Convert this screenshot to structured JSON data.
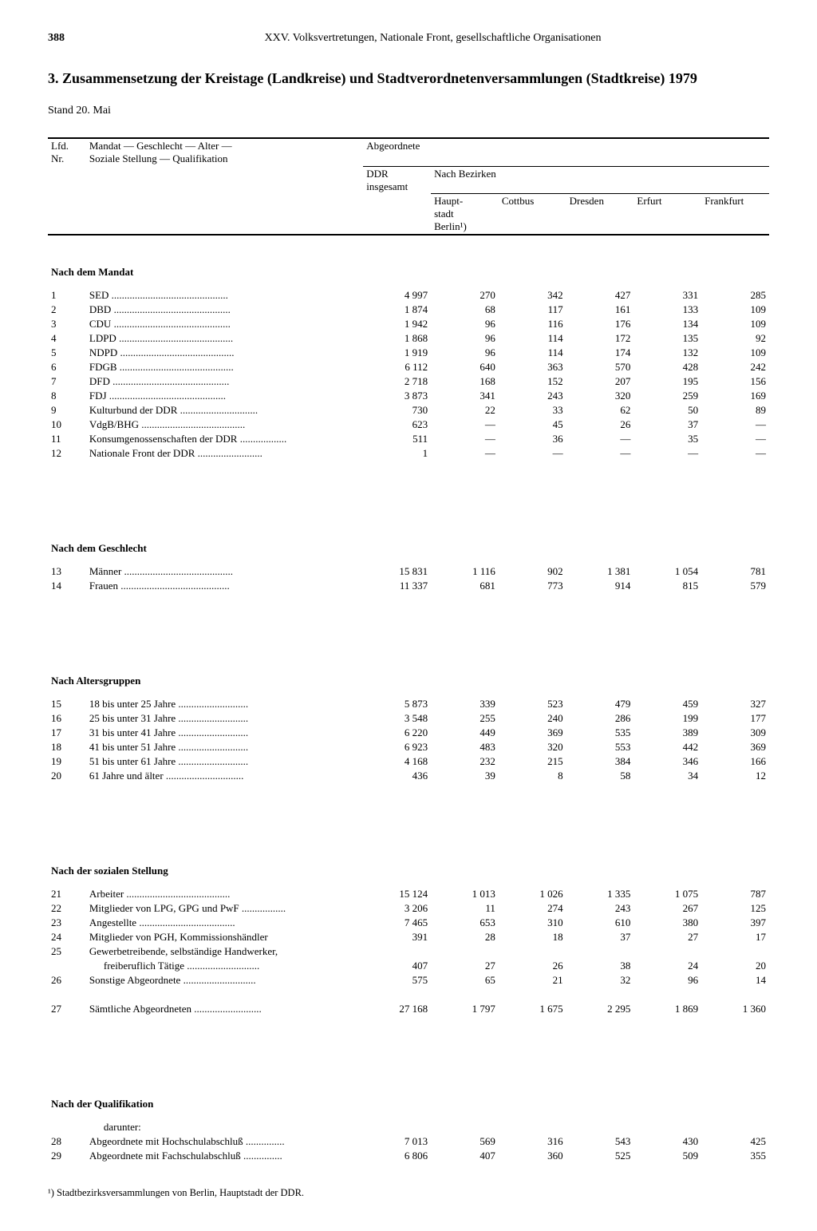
{
  "page_number": "388",
  "chapter": "XXV. Volksvertretungen, Nationale Front, gesellschaftliche Organisationen",
  "title": "3. Zusammensetzung der Kreistage (Landkreise) und Stadtverordnetenversammlungen (Stadtkreise) 1979",
  "stand": "Stand 20. Mai",
  "header": {
    "lfd": "Lfd.\nNr.",
    "mandat": "Mandat — Geschlecht — Alter —\nSoziale Stellung — Qualifikation",
    "abgeordnete": "Abgeordnete",
    "ddr": "DDR\ninsgesamt",
    "nach_bezirken": "Nach Bezirken",
    "cols": [
      "Haupt-\nstadt\nBerlin¹)",
      "Cottbus",
      "Dresden",
      "Erfurt",
      "Frankfurt"
    ]
  },
  "sections": [
    {
      "title": "Nach dem Mandat",
      "rows": [
        {
          "n": "1",
          "label": "SED",
          "v": [
            "4 997",
            "270",
            "342",
            "427",
            "331",
            "285"
          ]
        },
        {
          "n": "2",
          "label": "DBD",
          "v": [
            "1 874",
            "68",
            "117",
            "161",
            "133",
            "109"
          ]
        },
        {
          "n": "3",
          "label": "CDU",
          "v": [
            "1 942",
            "96",
            "116",
            "176",
            "134",
            "109"
          ]
        },
        {
          "n": "4",
          "label": "LDPD",
          "v": [
            "1 868",
            "96",
            "114",
            "172",
            "135",
            "92"
          ]
        },
        {
          "n": "5",
          "label": "NDPD",
          "v": [
            "1 919",
            "96",
            "114",
            "174",
            "132",
            "109"
          ]
        },
        {
          "n": "6",
          "label": "FDGB",
          "v": [
            "6 112",
            "640",
            "363",
            "570",
            "428",
            "242"
          ]
        },
        {
          "n": "7",
          "label": "DFD",
          "v": [
            "2 718",
            "168",
            "152",
            "207",
            "195",
            "156"
          ]
        },
        {
          "n": "8",
          "label": "FDJ",
          "v": [
            "3 873",
            "341",
            "243",
            "320",
            "259",
            "169"
          ]
        },
        {
          "n": "9",
          "label": "Kulturbund der DDR",
          "v": [
            "730",
            "22",
            "33",
            "62",
            "50",
            "89"
          ]
        },
        {
          "n": "10",
          "label": "VdgB/BHG",
          "v": [
            "623",
            "—",
            "45",
            "26",
            "37",
            "—"
          ]
        },
        {
          "n": "11",
          "label": "Konsumgenossenschaften der DDR",
          "v": [
            "511",
            "—",
            "36",
            "—",
            "35",
            "—"
          ]
        },
        {
          "n": "12",
          "label": "Nationale Front der DDR",
          "v": [
            "1",
            "—",
            "—",
            "—",
            "—",
            "—"
          ]
        }
      ]
    },
    {
      "title": "Nach dem Geschlecht",
      "rows": [
        {
          "n": "13",
          "label": "Männer",
          "v": [
            "15 831",
            "1 116",
            "902",
            "1 381",
            "1 054",
            "781"
          ]
        },
        {
          "n": "14",
          "label": "Frauen",
          "v": [
            "11 337",
            "681",
            "773",
            "914",
            "815",
            "579"
          ]
        }
      ]
    },
    {
      "title": "Nach Altersgruppen",
      "rows": [
        {
          "n": "15",
          "label": "18 bis unter 25 Jahre",
          "v": [
            "5 873",
            "339",
            "523",
            "479",
            "459",
            "327"
          ]
        },
        {
          "n": "16",
          "label": "25 bis unter 31 Jahre",
          "v": [
            "3 548",
            "255",
            "240",
            "286",
            "199",
            "177"
          ]
        },
        {
          "n": "17",
          "label": "31 bis unter 41 Jahre",
          "v": [
            "6 220",
            "449",
            "369",
            "535",
            "389",
            "309"
          ]
        },
        {
          "n": "18",
          "label": "41 bis unter 51 Jahre",
          "v": [
            "6 923",
            "483",
            "320",
            "553",
            "442",
            "369"
          ]
        },
        {
          "n": "19",
          "label": "51 bis unter 61 Jahre",
          "v": [
            "4 168",
            "232",
            "215",
            "384",
            "346",
            "166"
          ]
        },
        {
          "n": "20",
          "label": "61 Jahre und älter",
          "v": [
            "436",
            "39",
            "8",
            "58",
            "34",
            "12"
          ]
        }
      ]
    },
    {
      "title": "Nach der sozialen Stellung",
      "rows": [
        {
          "n": "21",
          "label": "Arbeiter",
          "v": [
            "15 124",
            "1 013",
            "1 026",
            "1 335",
            "1 075",
            "787"
          ]
        },
        {
          "n": "22",
          "label": "Mitglieder von LPG, GPG und PwF",
          "v": [
            "3 206",
            "11",
            "274",
            "243",
            "267",
            "125"
          ]
        },
        {
          "n": "23",
          "label": "Angestellte",
          "v": [
            "7 465",
            "653",
            "310",
            "610",
            "380",
            "397"
          ]
        },
        {
          "n": "24",
          "label": "Mitglieder von PGH, Kommissionshändler",
          "v": [
            "391",
            "28",
            "18",
            "37",
            "27",
            "17"
          ],
          "nodots": true
        },
        {
          "n": "25",
          "label": "Gewerbetreibende, selbständige Handwerker,",
          "v": [
            "",
            "",
            "",
            "",
            "",
            ""
          ],
          "nodots": true
        },
        {
          "n": "",
          "label": "freiberuflich Tätige",
          "indent": true,
          "v": [
            "407",
            "27",
            "26",
            "38",
            "24",
            "20"
          ]
        },
        {
          "n": "26",
          "label": "Sonstige Abgeordnete",
          "v": [
            "575",
            "65",
            "21",
            "32",
            "96",
            "14"
          ]
        }
      ],
      "total": {
        "n": "27",
        "label": "Sämtliche Abgeordneten",
        "v": [
          "27 168",
          "1 797",
          "1 675",
          "2 295",
          "1 869",
          "1 360"
        ]
      }
    },
    {
      "title": "Nach der Qualifikation",
      "pre": "darunter:",
      "rows": [
        {
          "n": "28",
          "label": "Abgeordnete mit Hochschulabschluß",
          "v": [
            "7 013",
            "569",
            "316",
            "543",
            "430",
            "425"
          ]
        },
        {
          "n": "29",
          "label": "Abgeordnete mit Fachschulabschluß",
          "v": [
            "6 806",
            "407",
            "360",
            "525",
            "509",
            "355"
          ]
        }
      ]
    }
  ],
  "footnote": "¹) Stadtbezirksversammlungen von Berlin, Hauptstadt der DDR."
}
